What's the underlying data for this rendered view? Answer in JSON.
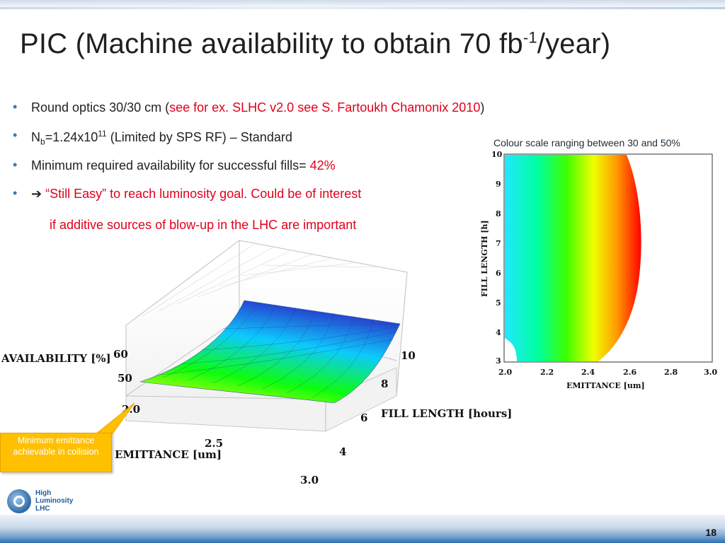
{
  "slide": {
    "title_main": "PIC (Machine availability to obtain 70 fb",
    "title_sup": "-1",
    "title_end": "/year)",
    "page_number": "18"
  },
  "bullets": [
    {
      "pre": "Round optics 30/30 cm (",
      "red": "see for ex. SLHC v2.0 see S. Fartoukh Chamonix 2010",
      "post": ")"
    },
    {
      "pre": "N",
      "sub": "b",
      "mid": "=1.24x10",
      "sup": "11",
      "post": " (Limited by SPS RF) – Standard"
    },
    {
      "pre": "Minimum required availability for successful fills= ",
      "red": "42%"
    },
    {
      "arrow": "➔",
      "red": "“Still Easy” to reach luminosity goal. Could be of interest"
    }
  ],
  "bullet_continuation": "if additive sources of blow-up in the LHC are important",
  "colour_caption": "Colour scale ranging between 30 and 50%",
  "callout_text": "Minimum emittance achievable in collision",
  "logo": {
    "line1": "High",
    "line2": "Luminosity",
    "line3": "LHC"
  },
  "chart_data": [
    {
      "type": "surface",
      "zlabel": "AVAILABILITY [%]",
      "ylabel": "FILL LENGTH [hours]",
      "xlabel": "EMITTANCE [um]",
      "z_ticks": [
        "50",
        "60"
      ],
      "y_ticks": [
        "4",
        "6",
        "8",
        "10"
      ],
      "x_ticks": [
        "2.0",
        "2.5",
        "3.0"
      ],
      "zlim": [
        45,
        60
      ],
      "colormap": [
        "#ffff00",
        "#00ff00",
        "#00d0ff",
        "#1a4bd0"
      ]
    },
    {
      "type": "heatmap",
      "xlabel": "EMITTANCE [um]",
      "ylabel": "FILL LENGTH [h]",
      "x_ticks": [
        "2.0",
        "2.2",
        "2.4",
        "2.6",
        "2.8",
        "3.0"
      ],
      "y_ticks": [
        "3",
        "4",
        "5",
        "6",
        "7",
        "8",
        "9",
        "10"
      ],
      "xlim": [
        2.0,
        3.0
      ],
      "ylim": [
        3,
        10
      ],
      "color_range": [
        30,
        50
      ],
      "colors": [
        "#00ffff",
        "#00ff00",
        "#ffff00",
        "#ff0000"
      ]
    }
  ]
}
